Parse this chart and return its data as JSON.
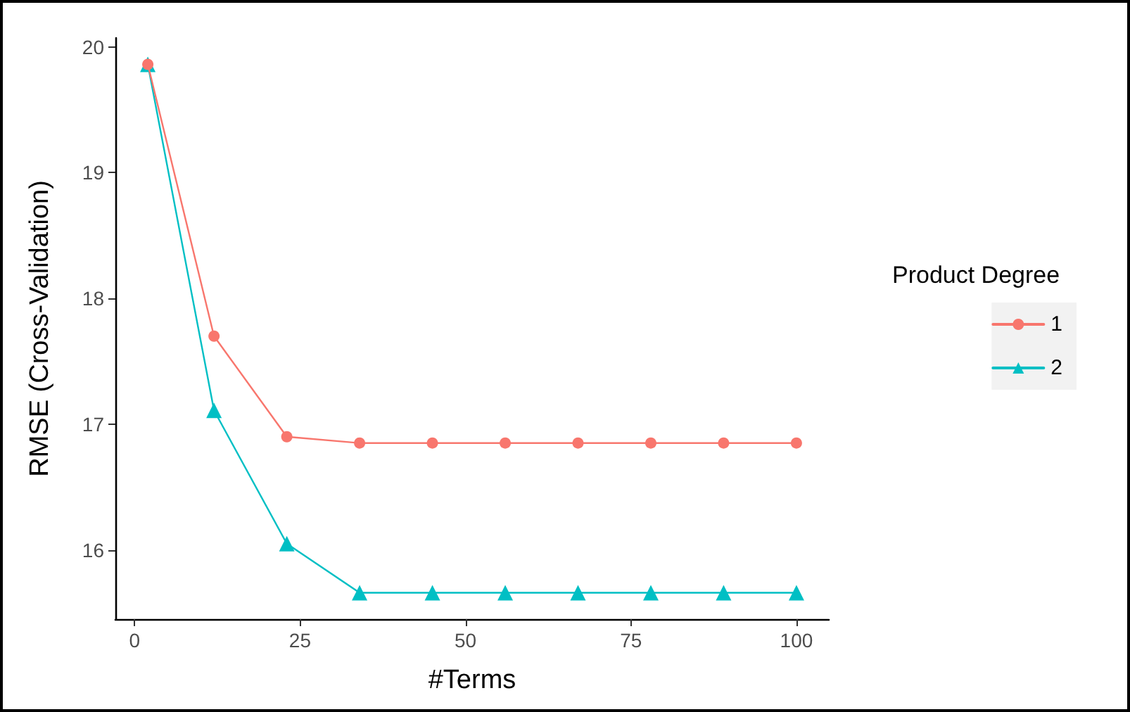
{
  "chart_data": {
    "type": "line",
    "xlabel": "#Terms",
    "ylabel": "RMSE (Cross-Validation)",
    "legend_title": "Product Degree",
    "legend": "right",
    "x": [
      2,
      12,
      23,
      34,
      45,
      56,
      67,
      78,
      89,
      100
    ],
    "series": [
      {
        "name": "1",
        "color": "#f8766d",
        "marker": "circle",
        "values": [
          19.86,
          17.7,
          16.9,
          16.85,
          16.85,
          16.85,
          16.85,
          16.85,
          16.85,
          16.85
        ]
      },
      {
        "name": "2",
        "color": "#00bfc4",
        "marker": "triangle",
        "values": [
          19.86,
          17.11,
          16.05,
          15.66,
          15.66,
          15.66,
          15.66,
          15.66,
          15.66,
          15.66
        ]
      }
    ],
    "xlim": [
      -2.9,
      104.9
    ],
    "xticks": [
      0,
      25,
      50,
      75,
      100
    ],
    "ylim": [
      15.45,
      20.07
    ],
    "yticks": [
      16,
      17,
      18,
      19,
      20
    ],
    "grid": false
  }
}
